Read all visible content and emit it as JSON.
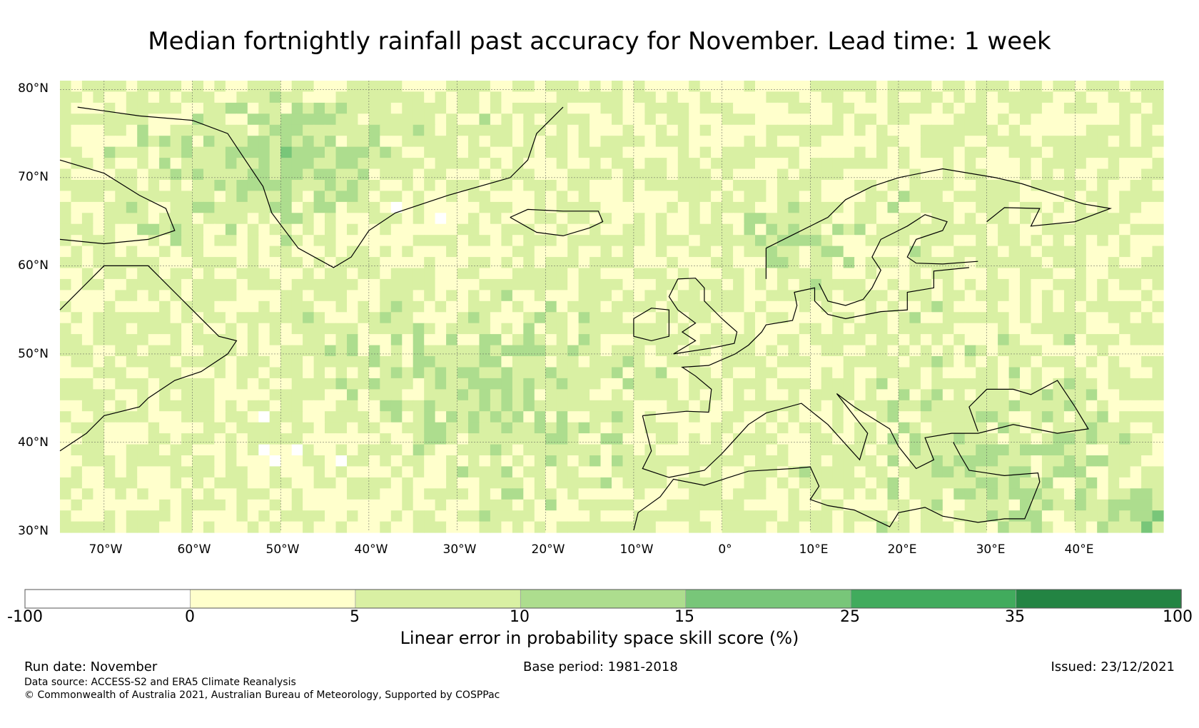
{
  "title": "Median fortnightly rainfall past accuracy for November. Lead time: 1 week",
  "map": {
    "lat_ticks": [
      "80°N",
      "70°N",
      "60°N",
      "50°N",
      "40°N",
      "30°N"
    ],
    "lon_ticks": [
      "70°W",
      "60°W",
      "50°W",
      "40°W",
      "30°W",
      "20°W",
      "10°W",
      "0°",
      "10°E",
      "20°E",
      "30°E",
      "40°E"
    ],
    "extent": {
      "lon_min": -75,
      "lon_max": 50,
      "lat_min": 30,
      "lat_max": 81
    }
  },
  "colorbar": {
    "title": "Linear error in probability space skill score (%)",
    "ticks": [
      "-100",
      "0",
      "5",
      "10",
      "15",
      "25",
      "35",
      "100"
    ],
    "colors": [
      "#ffffff",
      "#ffffcc",
      "#d9f0a3",
      "#addd8e",
      "#78c679",
      "#41ab5d",
      "#238443"
    ]
  },
  "footer": {
    "run_date": "Run date: November",
    "base_period": "Base period: 1981-2018",
    "issued": "Issued: 23/12/2021",
    "data_source": "Data source: ACCESS-S2 and ERA5 Climate Reanalysis",
    "copyright": "© Commonwealth of Australia 2021, Australian Bureau of Meteorology, Supported by COSPPac"
  }
}
